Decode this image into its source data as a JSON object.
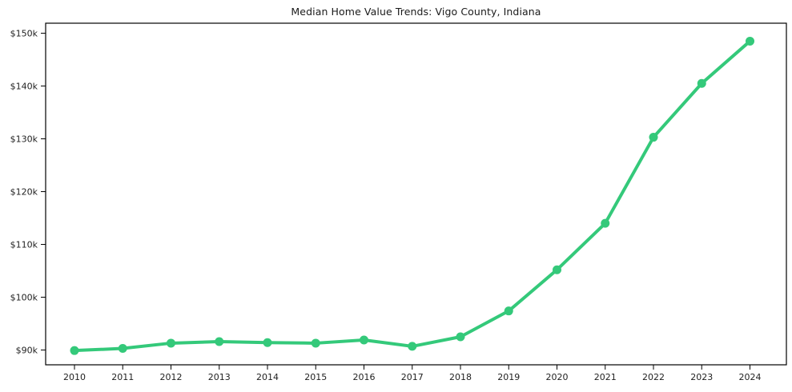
{
  "chart_data": {
    "type": "line",
    "title": "Median Home Value Trends: Vigo County, Indiana",
    "xlabel": "",
    "ylabel": "",
    "x": [
      2010,
      2011,
      2012,
      2013,
      2014,
      2015,
      2016,
      2017,
      2018,
      2019,
      2020,
      2021,
      2022,
      2023,
      2024
    ],
    "xtick_labels": [
      "2010",
      "2011",
      "2012",
      "2013",
      "2014",
      "2015",
      "2016",
      "2017",
      "2018",
      "2019",
      "2020",
      "2021",
      "2022",
      "2023",
      "2024"
    ],
    "series": [
      {
        "name": "Median Home Value",
        "values": [
          89900,
          90300,
          91300,
          91600,
          91400,
          91300,
          91900,
          90700,
          92500,
          97400,
          105200,
          114000,
          130300,
          140500,
          148500
        ],
        "color": "#34c97a"
      }
    ],
    "ytick_values": [
      90000,
      100000,
      110000,
      120000,
      130000,
      140000,
      150000
    ],
    "ytick_labels": [
      "$90k",
      "$100k",
      "$110k",
      "$120k",
      "$130k",
      "$140k",
      "$150k"
    ],
    "ylim": [
      87200,
      151900
    ],
    "grid": false,
    "legend": "none",
    "marker": "circle",
    "style": {
      "line_width": 4,
      "marker_radius": 5.5,
      "axis_color": "#000000",
      "text_color": "#1f1f1f",
      "background": "#ffffff"
    }
  }
}
